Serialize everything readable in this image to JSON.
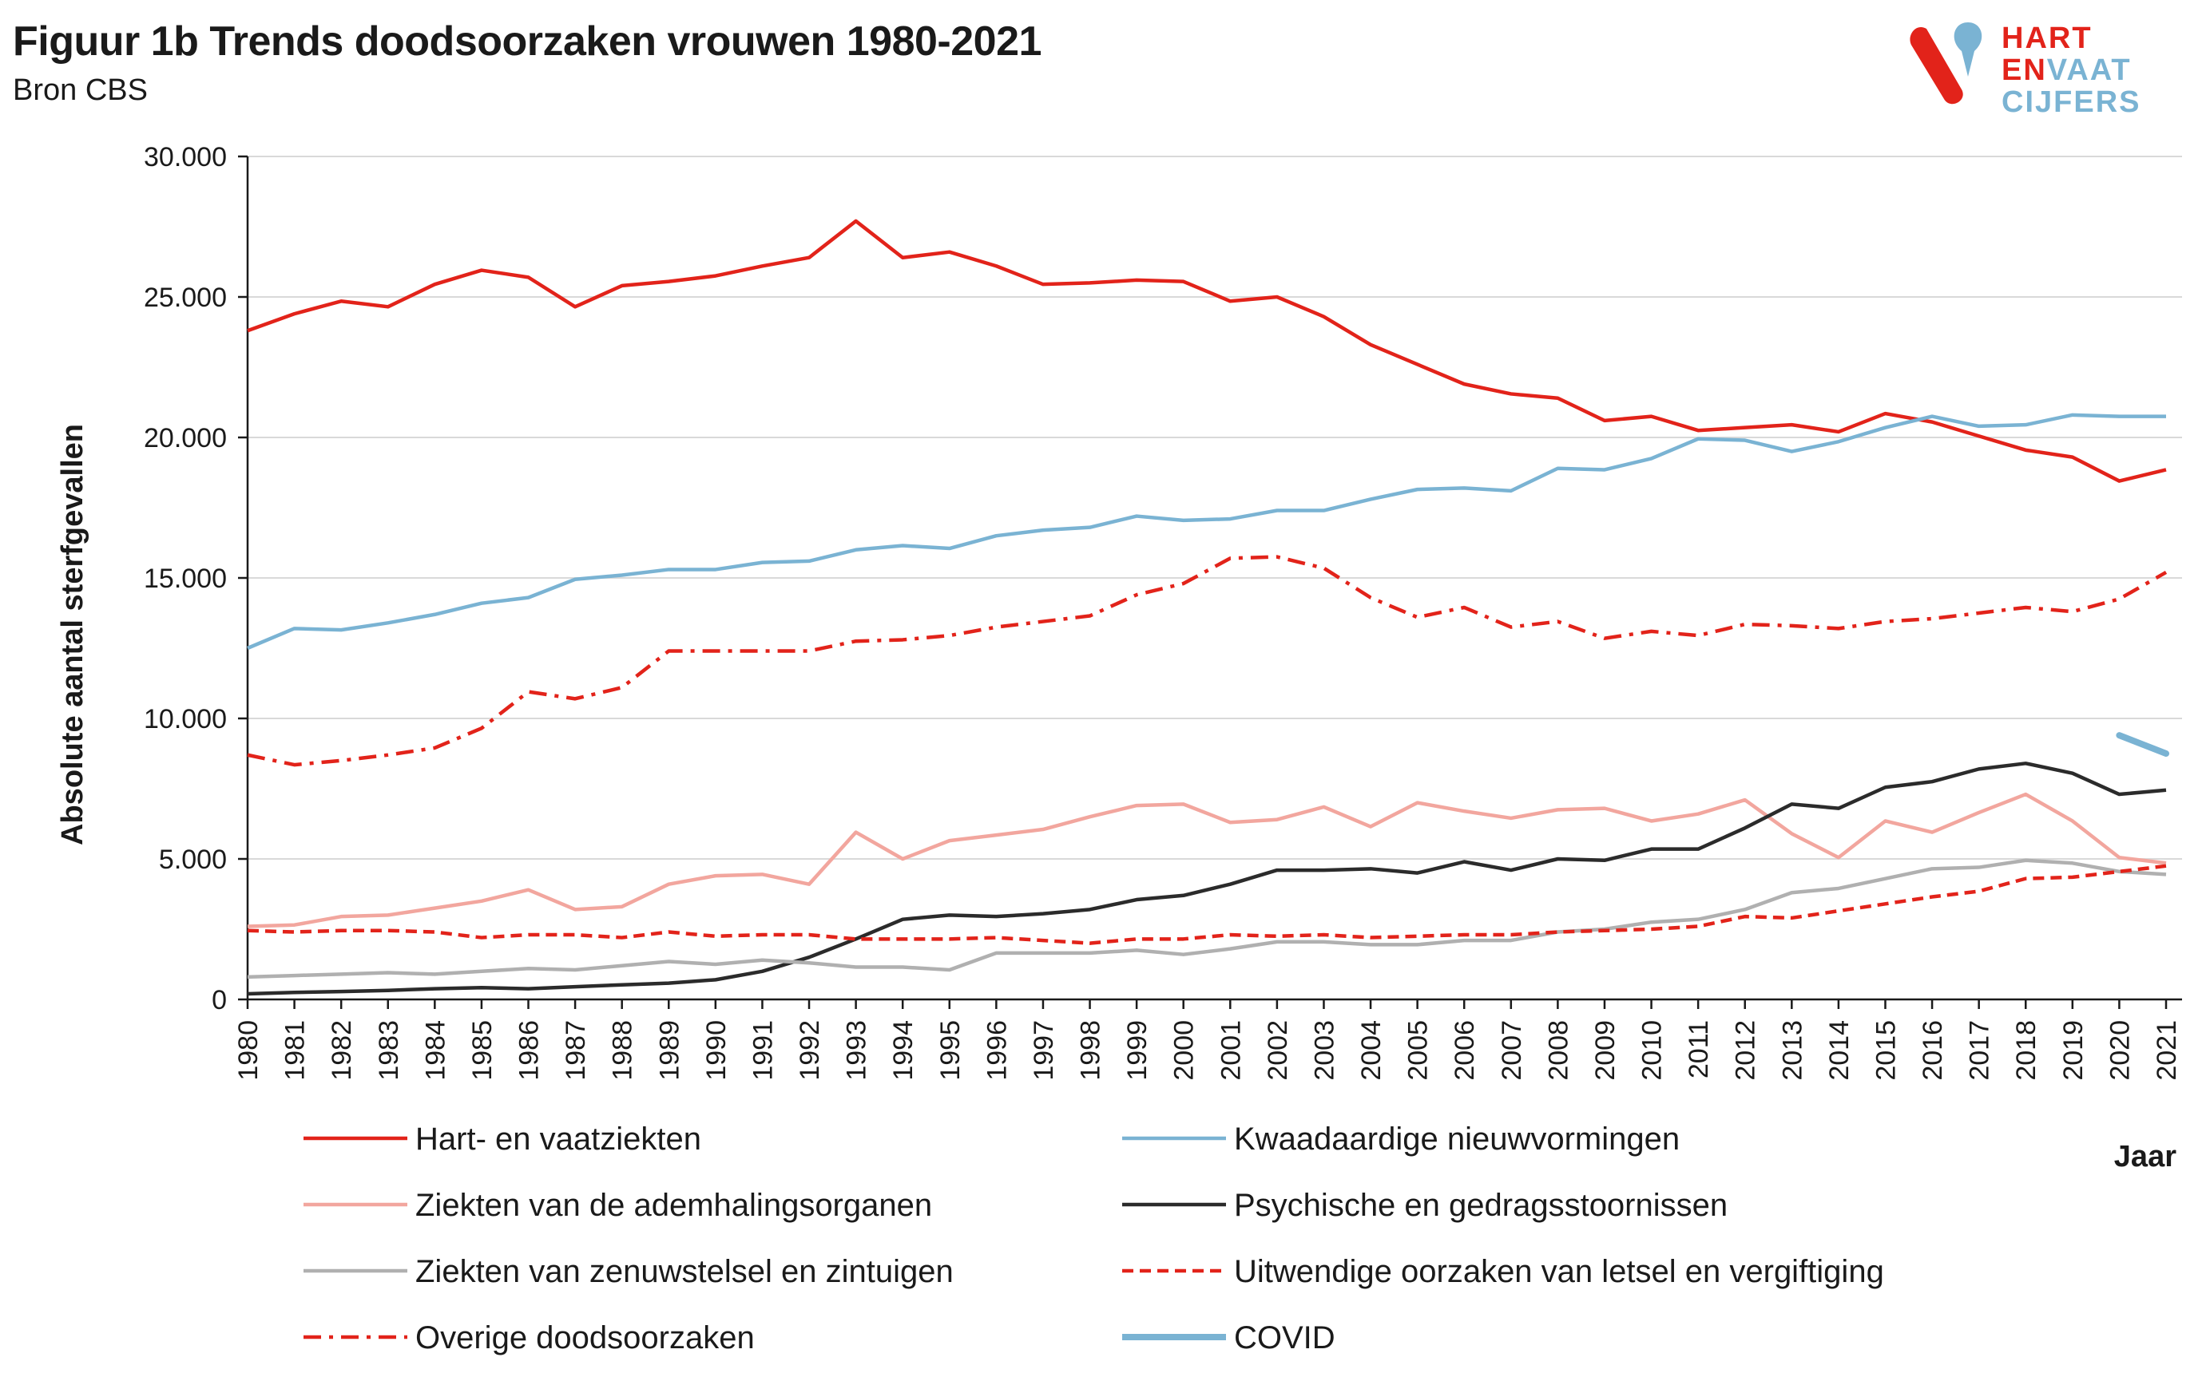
{
  "header": {
    "title": "Figuur 1b Trends doodsoorzaken vrouwen 1980-2021",
    "subtitle": "Bron CBS"
  },
  "logo": {
    "line1": "HART",
    "line2a": "EN",
    "line2b": "VAAT",
    "line3": "CIJFERS",
    "colors": {
      "red": "#e2231a",
      "blue": "#7ab3d3"
    }
  },
  "chart_data": {
    "type": "line",
    "title": "Figuur 1b Trends doodsoorzaken vrouwen 1980-2021",
    "subtitle": "Bron CBS",
    "xlabel": "Jaar",
    "ylabel": "Absolute aantal sterfgevallen",
    "ylim": [
      0,
      30000
    ],
    "yticks": [
      0,
      5000,
      10000,
      15000,
      20000,
      25000,
      30000
    ],
    "ytick_labels": [
      "0",
      "5.000",
      "10.000",
      "15.000",
      "20.000",
      "25.000",
      "30.000"
    ],
    "grid": "horizontal",
    "legend_position": "bottom",
    "x": [
      1980,
      1981,
      1982,
      1983,
      1984,
      1985,
      1986,
      1987,
      1988,
      1989,
      1990,
      1991,
      1992,
      1993,
      1994,
      1995,
      1996,
      1997,
      1998,
      1999,
      2000,
      2001,
      2002,
      2003,
      2004,
      2005,
      2006,
      2007,
      2008,
      2009,
      2010,
      2011,
      2012,
      2013,
      2014,
      2015,
      2016,
      2017,
      2018,
      2019,
      2020,
      2021
    ],
    "x_labels": [
      "1980",
      "1981",
      "1982",
      "1983",
      "1984",
      "1985",
      "1986",
      "1987",
      "1988",
      "1989",
      "1990",
      "1991",
      "1992",
      "1993",
      "1994",
      "1995",
      "1996",
      "1997",
      "1998",
      "1999",
      "2000",
      "2001",
      "2002",
      "2003",
      "2004",
      "2005",
      "2006",
      "2007",
      "2008",
      "2009",
      "2010",
      "2011",
      "2012",
      "2013",
      "2014",
      "2015",
      "2016",
      "2017",
      "2018",
      "2019",
      "2020",
      "2021"
    ],
    "series": [
      {
        "name": "Hart- en vaatziekten",
        "color": "#e2231a",
        "dash": "solid",
        "width": "normal",
        "values": [
          23800,
          24400,
          24850,
          24650,
          25450,
          25950,
          25700,
          24650,
          25400,
          25550,
          25750,
          26100,
          26400,
          27700,
          26400,
          26600,
          26100,
          25450,
          25500,
          25600,
          25550,
          24850,
          25000,
          24300,
          23300,
          22600,
          21900,
          21550,
          21400,
          20600,
          20750,
          20250,
          20350,
          20450,
          20200,
          20850,
          20550,
          20050,
          19550,
          19300,
          18450,
          18850
        ]
      },
      {
        "name": "Kwaadaardige nieuwvormingen",
        "color": "#7ab3d3",
        "dash": "solid",
        "width": "normal",
        "values": [
          12500,
          13200,
          13150,
          13400,
          13700,
          14100,
          14300,
          14950,
          15100,
          15300,
          15300,
          15550,
          15600,
          16000,
          16150,
          16050,
          16500,
          16700,
          16800,
          17200,
          17050,
          17100,
          17400,
          17400,
          17800,
          18150,
          18200,
          18100,
          18900,
          18850,
          19250,
          19950,
          19900,
          19500,
          19850,
          20350,
          20750,
          20400,
          20450,
          20800,
          20750,
          20750
        ]
      },
      {
        "name": "Ziekten van de ademhalingsorganen",
        "color": "#f2a69e",
        "dash": "solid",
        "width": "normal",
        "values": [
          2600,
          2650,
          2950,
          3000,
          3250,
          3500,
          3900,
          3200,
          3300,
          4100,
          4400,
          4450,
          4100,
          5950,
          5000,
          5650,
          5850,
          6050,
          6500,
          6900,
          6950,
          6300,
          6400,
          6850,
          6150,
          7000,
          6700,
          6450,
          6750,
          6800,
          6350,
          6600,
          7100,
          5900,
          5050,
          6350,
          5950,
          6650,
          7300,
          6350,
          5050,
          4850
        ]
      },
      {
        "name": "Psychische en gedragsstoornissen",
        "color": "#2b2b2b",
        "dash": "solid",
        "width": "normal",
        "values": [
          200,
          250,
          280,
          320,
          380,
          420,
          380,
          450,
          520,
          580,
          700,
          1000,
          1500,
          2150,
          2850,
          3000,
          2950,
          3050,
          3200,
          3550,
          3700,
          4100,
          4600,
          4600,
          4650,
          4500,
          4900,
          4600,
          5000,
          4950,
          5350,
          5350,
          6100,
          6950,
          6800,
          7550,
          7750,
          8200,
          8400,
          8050,
          7300,
          7450
        ]
      },
      {
        "name": "Ziekten van zenuwstelsel en zintuigen",
        "color": "#b0b0b0",
        "dash": "solid",
        "width": "normal",
        "values": [
          800,
          850,
          900,
          950,
          900,
          1000,
          1100,
          1050,
          1200,
          1350,
          1250,
          1400,
          1300,
          1150,
          1150,
          1050,
          1650,
          1650,
          1650,
          1750,
          1600,
          1800,
          2050,
          2050,
          1950,
          1950,
          2100,
          2100,
          2400,
          2500,
          2750,
          2850,
          3200,
          3800,
          3950,
          4300,
          4650,
          4700,
          4950,
          4850,
          4550,
          4450
        ]
      },
      {
        "name": "Uitwendige oorzaken van letsel en vergiftiging",
        "color": "#e2231a",
        "dash": "dashed",
        "width": "normal",
        "values": [
          2450,
          2400,
          2450,
          2450,
          2400,
          2200,
          2300,
          2300,
          2200,
          2400,
          2250,
          2300,
          2300,
          2150,
          2150,
          2150,
          2200,
          2100,
          2000,
          2150,
          2150,
          2300,
          2250,
          2300,
          2200,
          2250,
          2300,
          2300,
          2400,
          2450,
          2500,
          2600,
          2950,
          2900,
          3150,
          3400,
          3650,
          3850,
          4300,
          4350,
          4550,
          4750
        ]
      },
      {
        "name": "Overige doodsoorzaken",
        "color": "#e2231a",
        "dash": "dashdot",
        "width": "normal",
        "values": [
          8700,
          8350,
          8500,
          8700,
          8950,
          9650,
          10950,
          10700,
          11100,
          12400,
          12400,
          12400,
          12400,
          12750,
          12800,
          12950,
          13250,
          13450,
          13650,
          14400,
          14800,
          15700,
          15750,
          15350,
          14300,
          13600,
          13950,
          13250,
          13450,
          12850,
          13100,
          12950,
          13350,
          13300,
          13200,
          13450,
          13550,
          13750,
          13950,
          13800,
          14250,
          15200
        ]
      },
      {
        "name": "COVID",
        "color": "#7ab3d3",
        "dash": "solid",
        "width": "thick",
        "values": [
          null,
          null,
          null,
          null,
          null,
          null,
          null,
          null,
          null,
          null,
          null,
          null,
          null,
          null,
          null,
          null,
          null,
          null,
          null,
          null,
          null,
          null,
          null,
          null,
          null,
          null,
          null,
          null,
          null,
          null,
          null,
          null,
          null,
          null,
          null,
          null,
          null,
          null,
          null,
          null,
          9400,
          8750
        ]
      }
    ]
  }
}
